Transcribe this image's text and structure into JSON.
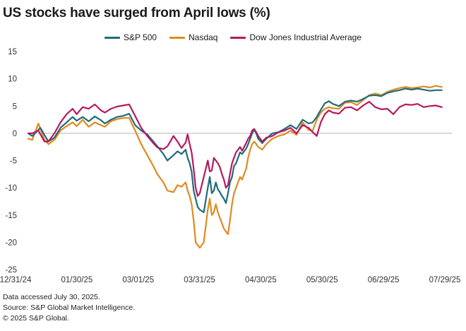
{
  "title": "US stocks have surged from April lows (%)",
  "chart_data": {
    "type": "line",
    "title": "US stocks have surged from April lows (%)",
    "ylim": [
      -25,
      15
    ],
    "yticks": [
      15,
      10,
      5,
      0,
      -5,
      -10,
      -15,
      -20,
      -25
    ],
    "xticks": [
      "12/31/24",
      "01/30/25",
      "03/01/25",
      "03/31/25",
      "04/30/25",
      "05/30/25",
      "06/29/25",
      "07/29/25"
    ],
    "xdomain": [
      0,
      210
    ],
    "xlabel": "",
    "ylabel": "",
    "legend_position": "top-center",
    "series": [
      {
        "name": "S&P 500",
        "color": "#1f6b7a",
        "x": [
          0,
          2,
          6,
          8,
          10,
          13,
          16,
          19,
          22,
          24,
          27,
          30,
          33,
          36,
          38,
          41,
          44,
          47,
          50,
          53,
          56,
          59,
          62,
          64,
          67,
          69,
          72,
          74,
          76,
          78,
          79,
          80,
          81,
          82,
          83,
          84,
          85,
          87,
          89,
          90,
          91,
          92,
          93,
          94,
          95,
          96,
          97,
          98,
          99,
          100,
          101,
          102,
          103,
          104,
          105,
          106,
          108,
          109,
          110,
          111,
          112,
          113,
          114,
          116,
          118,
          121,
          124,
          127,
          130,
          133,
          136,
          139,
          141,
          143,
          145,
          147,
          149,
          151,
          154,
          157,
          160,
          163,
          166,
          169,
          172,
          175,
          178,
          181,
          184,
          187,
          190,
          193,
          196,
          199,
          202,
          205
        ],
        "values": [
          0,
          -0.5,
          1,
          -0.3,
          -1.5,
          -0.8,
          1,
          2,
          3,
          2.3,
          3,
          2.2,
          3.1,
          2.4,
          1.8,
          2.5,
          3,
          3.2,
          3.6,
          1.5,
          0.5,
          -0.2,
          -1.5,
          -2.4,
          -3.8,
          -5,
          -4,
          -3.3,
          -3.8,
          -3,
          -4.5,
          -5.5,
          -7,
          -10.5,
          -12,
          -13.5,
          -14,
          -14.5,
          -10,
          -8,
          -11,
          -10.5,
          -9,
          -10.3,
          -10.8,
          -11.5,
          -12,
          -12.8,
          -11,
          -9,
          -8,
          -6,
          -5.5,
          -4.5,
          -3.5,
          -3.8,
          -2.8,
          -2,
          -1,
          0,
          0.7,
          0,
          -1,
          -1.8,
          -1,
          0,
          0.2,
          0.8,
          1.5,
          0.8,
          2.5,
          1.8,
          2,
          3,
          4.3,
          5.5,
          5.9,
          5.4,
          5,
          5.8,
          6,
          5.8,
          6.3,
          6.9,
          7,
          6.8,
          7.4,
          7.7,
          7.9,
          8.2,
          8.0,
          8.2,
          8.0,
          7.8,
          7.9,
          7.9
        ]
      },
      {
        "name": "Nasdaq",
        "color": "#e08a1e",
        "x": [
          0,
          2,
          5,
          8,
          10,
          13,
          16,
          19,
          22,
          24,
          27,
          30,
          33,
          36,
          38,
          41,
          44,
          47,
          50,
          53,
          56,
          59,
          62,
          64,
          67,
          69,
          72,
          74,
          76,
          78,
          79,
          80,
          81,
          82,
          83,
          84,
          85,
          87,
          89,
          90,
          91,
          92,
          93,
          94,
          95,
          96,
          97,
          98,
          99,
          100,
          101,
          102,
          103,
          104,
          105,
          106,
          108,
          109,
          110,
          111,
          112,
          113,
          114,
          116,
          118,
          121,
          124,
          127,
          130,
          133,
          136,
          139,
          141,
          143,
          145,
          147,
          149,
          151,
          154,
          157,
          160,
          163,
          166,
          169,
          172,
          175,
          178,
          181,
          184,
          187,
          190,
          193,
          196,
          199,
          202,
          205
        ],
        "values": [
          -1,
          -1.2,
          1.8,
          -1.2,
          -2,
          -1.2,
          0.5,
          1.3,
          2,
          1.3,
          2.5,
          1.2,
          2,
          1.5,
          1.2,
          2.2,
          2.6,
          2.8,
          2.8,
          0.5,
          -2,
          -4,
          -6,
          -7.5,
          -9,
          -10.5,
          -10.8,
          -9.5,
          -9.8,
          -9,
          -10.5,
          -11.5,
          -13,
          -16,
          -20,
          -20.5,
          -21,
          -20,
          -14,
          -12,
          -15,
          -14.5,
          -13,
          -14.5,
          -15.5,
          -16.5,
          -17.5,
          -18,
          -18.5,
          -16,
          -13,
          -11,
          -10,
          -9,
          -8,
          -8.5,
          -6.5,
          -4.5,
          -3,
          -2,
          -1.5,
          -2,
          -2.5,
          -3,
          -2,
          -1,
          -0.5,
          -0.2,
          0.5,
          -0.3,
          2,
          0.6,
          0.5,
          2.5,
          3.8,
          4.5,
          4.8,
          4.6,
          4.5,
          5.6,
          5.7,
          5.2,
          6.1,
          7.0,
          7.3,
          7.0,
          7.6,
          8.0,
          8.3,
          8.5,
          8.3,
          8.4,
          8.6,
          8.4,
          8.7,
          8.5
        ]
      },
      {
        "name": "Dow Jones Industrial Average",
        "color": "#b5195e",
        "x": [
          0,
          2,
          5,
          8,
          10,
          13,
          16,
          19,
          22,
          24,
          27,
          30,
          33,
          36,
          38,
          41,
          44,
          47,
          50,
          53,
          56,
          59,
          62,
          64,
          67,
          69,
          72,
          74,
          76,
          78,
          79,
          80,
          81,
          82,
          83,
          84,
          85,
          87,
          89,
          90,
          91,
          92,
          93,
          94,
          95,
          96,
          97,
          98,
          99,
          100,
          101,
          102,
          103,
          104,
          105,
          106,
          108,
          109,
          110,
          111,
          112,
          113,
          114,
          116,
          118,
          121,
          124,
          127,
          130,
          133,
          136,
          139,
          141,
          143,
          145,
          147,
          149,
          151,
          154,
          157,
          160,
          163,
          166,
          169,
          172,
          175,
          178,
          181,
          184,
          187,
          190,
          193,
          196,
          199,
          202,
          205
        ],
        "values": [
          0,
          0,
          0.5,
          -1.5,
          -1.5,
          0,
          2,
          3.5,
          4.5,
          3.5,
          4.8,
          4.5,
          5.3,
          4.2,
          3.8,
          4.5,
          4.9,
          5.1,
          5.3,
          3.2,
          1,
          -0.5,
          -1.8,
          -2.6,
          -2.9,
          -2.4,
          -0.5,
          -1.5,
          -2.7,
          -1.7,
          -0.2,
          -2,
          -3.5,
          -6.5,
          -10,
          -11.5,
          -11,
          -8,
          -5,
          -7,
          -6.8,
          -4.5,
          -5,
          -5.5,
          -6.2,
          -7.5,
          -8.5,
          -10,
          -9.5,
          -7.5,
          -5.5,
          -4.5,
          -3.5,
          -3,
          -2.5,
          -3.2,
          -1.8,
          -1,
          -0.5,
          0.5,
          0.8,
          0.2,
          -0.5,
          -1.5,
          -0.8,
          -0.5,
          0.2,
          0.5,
          1,
          0,
          1.5,
          1,
          0.2,
          -0.5,
          2,
          3.5,
          4.2,
          3.8,
          3.6,
          4.7,
          4.8,
          4.2,
          5.1,
          5.8,
          4.8,
          4.4,
          4.5,
          3.5,
          4.8,
          5.3,
          5.2,
          5.4,
          4.8,
          5,
          5.1,
          4.8
        ]
      }
    ]
  },
  "footnotes": {
    "line1": "Data accessed July 30, 2025.",
    "line2": "Source: S&P Global Market Intelligence.",
    "line3": "© 2025 S&P Global."
  }
}
